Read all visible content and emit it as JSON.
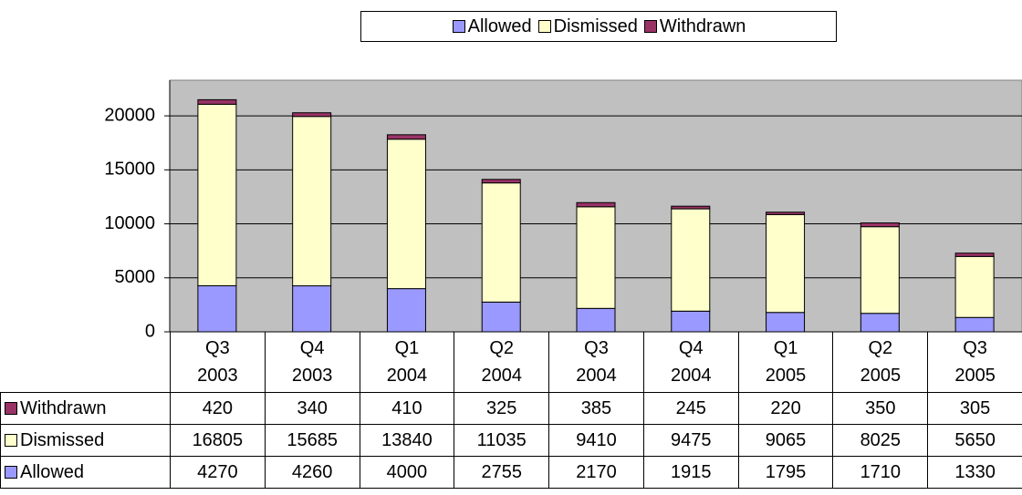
{
  "chart_data": {
    "type": "stacked_bar",
    "categories": [
      "Q3 2003",
      "Q4 2003",
      "Q1 2004",
      "Q2 2004",
      "Q3 2004",
      "Q4 2004",
      "Q1 2005",
      "Q2 2005",
      "Q3 2005"
    ],
    "series": [
      {
        "name": "Allowed",
        "color": "#9999ff",
        "values": [
          4270,
          4260,
          4000,
          2755,
          2170,
          1915,
          1795,
          1710,
          1330
        ]
      },
      {
        "name": "Dismissed",
        "color": "#ffffcc",
        "values": [
          16805,
          15685,
          13840,
          11035,
          9410,
          9475,
          9065,
          8025,
          5650
        ]
      },
      {
        "name": "Withdrawn",
        "color": "#993366",
        "values": [
          420,
          340,
          410,
          325,
          385,
          245,
          220,
          350,
          305
        ]
      }
    ],
    "ylim": [
      0,
      23300
    ],
    "yticks": [
      0,
      5000,
      10000,
      15000,
      20000
    ],
    "grid": true,
    "legend": "top",
    "plot_background": "#c0c0c0",
    "data_table": true
  }
}
